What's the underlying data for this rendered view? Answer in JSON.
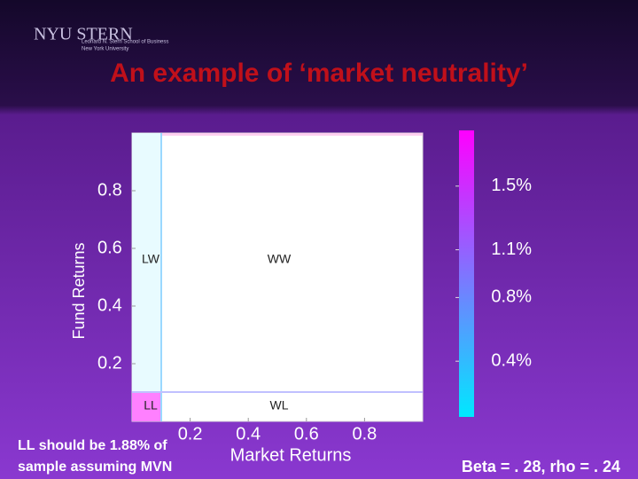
{
  "logo": {
    "name": "NYU STERN",
    "school": "Leonard N. Stern School of Business",
    "university": "New York University"
  },
  "chart_data": {
    "type": "heatmap",
    "title": "An example of ‘market neutrality’",
    "xlabel": "Market Returns",
    "ylabel": "Fund Returns",
    "xlim": [
      0,
      1
    ],
    "ylim": [
      0,
      1
    ],
    "xticks": [
      0.2,
      0.4,
      0.6,
      0.8
    ],
    "yticks": [
      0.2,
      0.4,
      0.6,
      0.8
    ],
    "quadrants": [
      "LW",
      "WW",
      "LL",
      "WL"
    ],
    "colorbar": {
      "clim": [
        0.05,
        1.85
      ],
      "ticks": [
        {
          "value": 0.4,
          "label": "0.4%"
        },
        {
          "value": 0.8,
          "label": "0.8%"
        },
        {
          "value": 1.1,
          "label": "1.1%"
        },
        {
          "value": 1.5,
          "label": "1.5%"
        }
      ],
      "colors": [
        "#00e8ff",
        "#ff00ff"
      ]
    },
    "annotations": [
      "LL should be 1.88% of",
      "sample assuming MVN",
      "Beta = . 28, rho = . 24"
    ]
  }
}
